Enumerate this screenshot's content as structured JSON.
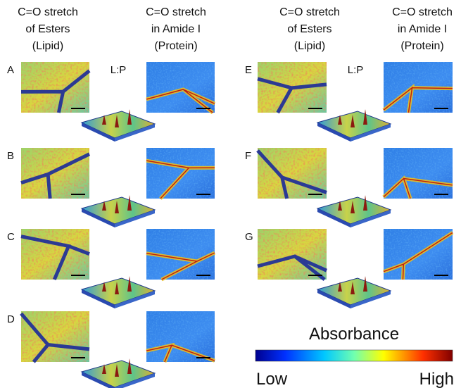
{
  "headers": [
    {
      "lines": [
        "C=O stretch",
        "of Esters",
        "(Lipid)"
      ]
    },
    {
      "lines": [
        "C=O stretch",
        "in Amide I",
        "(Protein)"
      ]
    },
    {
      "lines": [
        "C=O stretch",
        "of Esters",
        "(Lipid)"
      ]
    },
    {
      "lines": [
        "C=O stretch",
        "in Amide I",
        "(Protein)"
      ]
    }
  ],
  "panels": [
    {
      "label": "A",
      "ratio_label": "L:P"
    },
    {
      "label": "B"
    },
    {
      "label": "C"
    },
    {
      "label": "D"
    },
    {
      "label": "E",
      "ratio_label": "L:P"
    },
    {
      "label": "F"
    },
    {
      "label": "G"
    }
  ],
  "colorbar": {
    "title": "Absorbance",
    "low": "Low",
    "high": "High"
  }
}
